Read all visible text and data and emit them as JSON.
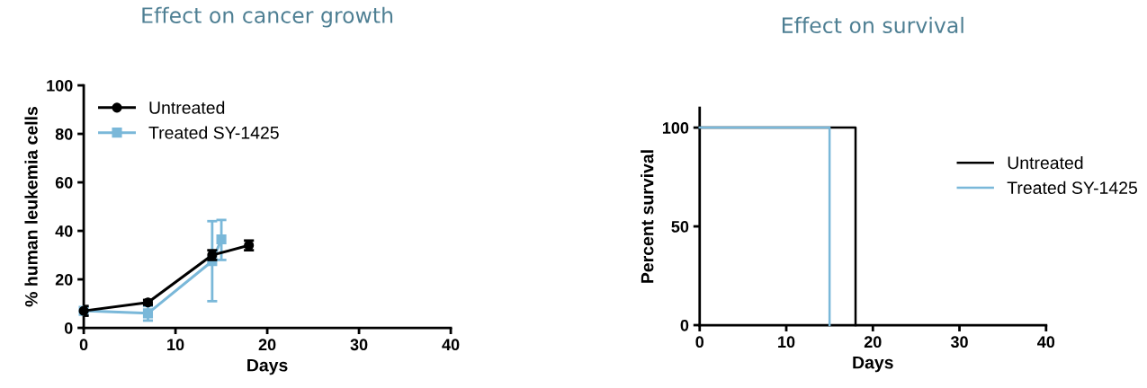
{
  "chart_data": [
    {
      "type": "line",
      "title": "Effect on cancer growth",
      "xlabel": "Days",
      "ylabel": "% human leukemia cells",
      "xlim": [
        0,
        40
      ],
      "xticks": [
        0,
        10,
        20,
        30,
        40
      ],
      "ylim": [
        0,
        100
      ],
      "yticks": [
        0,
        20,
        40,
        60,
        80,
        100
      ],
      "grid": false,
      "legend": "top left",
      "marker": "circle",
      "line_style": "solid",
      "series": [
        {
          "name": "Untreated",
          "color": "#000000",
          "marker": "circle",
          "x": [
            0,
            7,
            14,
            18
          ],
          "values": [
            7,
            10.5,
            30,
            34
          ],
          "errors": [
            2,
            1,
            2,
            2
          ]
        },
        {
          "name": "Treated SY-1425",
          "color": "#7ab8d9",
          "marker": "square",
          "x": [
            0,
            7,
            14,
            15
          ],
          "values": [
            7,
            6,
            27.5,
            36.5
          ],
          "errors": [
            null,
            [
              3,
              9
            ],
            [
              11,
              44
            ],
            [
              28,
              44.5
            ]
          ]
        }
      ]
    },
    {
      "type": "step",
      "title": "Effect on survival",
      "xlabel": "Days",
      "ylabel": "Percent survival",
      "xlim": [
        0,
        40
      ],
      "xticks": [
        0,
        10,
        20,
        30,
        40
      ],
      "ylim": [
        0,
        110
      ],
      "yticks": [
        0,
        50,
        100
      ],
      "grid": false,
      "legend": "right",
      "marker": "none",
      "line_style": "solid",
      "series": [
        {
          "name": "Untreated",
          "color": "#000000",
          "x": [
            0,
            18,
            18
          ],
          "values": [
            100,
            100,
            0
          ]
        },
        {
          "name": "Treated SY-1425",
          "color": "#7ab8d9",
          "x": [
            0,
            15,
            15
          ],
          "values": [
            100,
            100,
            0
          ]
        }
      ]
    }
  ]
}
